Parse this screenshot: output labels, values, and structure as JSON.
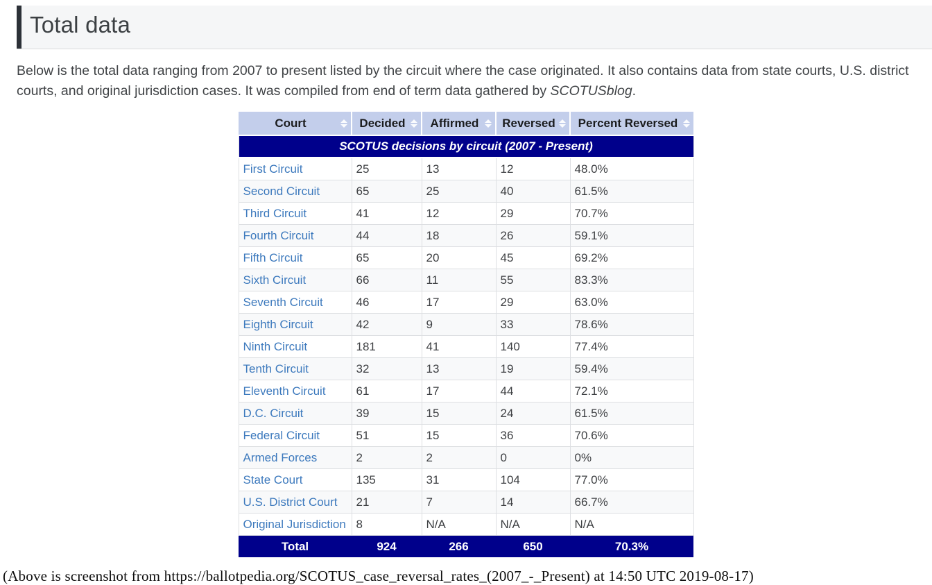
{
  "page": {
    "heading": "Total data",
    "intro": {
      "text_before": "Below is the total data ranging from 2007 to present listed by the circuit where the case originated. It also contains data from state courts, U.S. district courts, and original jurisdiction cases. It was compiled from end of term data gathered by ",
      "italic_text": "SCOTUSblog",
      "text_after": "."
    },
    "caption": "(Above is screenshot from https://ballotpedia.org/SCOTUS_case_reversal_rates_(2007_-_Present) at 14:50 UTC 2019-08-17)"
  },
  "table": {
    "title": "SCOTUS decisions by circuit (2007 - Present)",
    "columns": [
      "Court",
      "Decided",
      "Affirmed",
      "Reversed",
      "Percent Reversed"
    ],
    "sortable": true,
    "rows": [
      {
        "court": "First Circuit",
        "decided": "25",
        "affirmed": "13",
        "reversed": "12",
        "percent": "48.0%"
      },
      {
        "court": "Second Circuit",
        "decided": "65",
        "affirmed": "25",
        "reversed": "40",
        "percent": "61.5%"
      },
      {
        "court": "Third Circuit",
        "decided": "41",
        "affirmed": "12",
        "reversed": "29",
        "percent": "70.7%"
      },
      {
        "court": "Fourth Circuit",
        "decided": "44",
        "affirmed": "18",
        "reversed": "26",
        "percent": "59.1%"
      },
      {
        "court": "Fifth Circuit",
        "decided": "65",
        "affirmed": "20",
        "reversed": "45",
        "percent": "69.2%"
      },
      {
        "court": "Sixth Circuit",
        "decided": "66",
        "affirmed": "11",
        "reversed": "55",
        "percent": "83.3%"
      },
      {
        "court": "Seventh Circuit",
        "decided": "46",
        "affirmed": "17",
        "reversed": "29",
        "percent": "63.0%"
      },
      {
        "court": "Eighth Circuit",
        "decided": "42",
        "affirmed": "9",
        "reversed": "33",
        "percent": "78.6%"
      },
      {
        "court": "Ninth Circuit",
        "decided": "181",
        "affirmed": "41",
        "reversed": "140",
        "percent": "77.4%"
      },
      {
        "court": "Tenth Circuit",
        "decided": "32",
        "affirmed": "13",
        "reversed": "19",
        "percent": "59.4%"
      },
      {
        "court": "Eleventh Circuit",
        "decided": "61",
        "affirmed": "17",
        "reversed": "44",
        "percent": "72.1%"
      },
      {
        "court": "D.C. Circuit",
        "decided": "39",
        "affirmed": "15",
        "reversed": "24",
        "percent": "61.5%"
      },
      {
        "court": "Federal Circuit",
        "decided": "51",
        "affirmed": "15",
        "reversed": "36",
        "percent": "70.6%"
      },
      {
        "court": "Armed Forces",
        "decided": "2",
        "affirmed": "2",
        "reversed": "0",
        "percent": "0%"
      },
      {
        "court": "State Court",
        "decided": "135",
        "affirmed": "31",
        "reversed": "104",
        "percent": "77.0%"
      },
      {
        "court": "U.S. District Court",
        "decided": "21",
        "affirmed": "7",
        "reversed": "14",
        "percent": "66.7%"
      },
      {
        "court": "Original Jurisdiction",
        "decided": "8",
        "affirmed": "N/A",
        "reversed": "N/A",
        "percent": "N/A"
      }
    ],
    "total": {
      "label": "Total",
      "decided": "924",
      "affirmed": "266",
      "reversed": "650",
      "percent": "70.3%"
    }
  },
  "icons": {
    "sort": "sort-up-down-arrows"
  },
  "colors": {
    "table_title_navy": "#00008b",
    "header_blue": "#c3ceeb",
    "link_blue": "#3c79bd",
    "row_stripe": "#f8f9fa",
    "cell_border": "#dddfe2",
    "heading_band_bg": "#f5f6f7",
    "heading_accent": "#2c3137"
  }
}
